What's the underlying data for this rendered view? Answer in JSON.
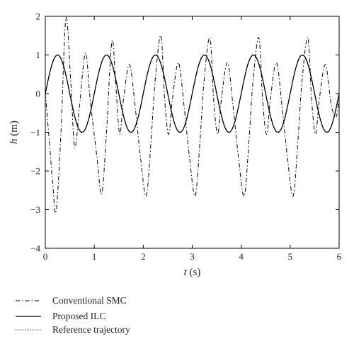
{
  "chart_data": {
    "type": "line",
    "xlabel_var": "t",
    "xlabel_unit": " (s)",
    "ylabel_var": "h",
    "ylabel_unit": " (m)",
    "xlim": [
      0,
      6
    ],
    "ylim": [
      -4,
      2
    ],
    "xticks": [
      "0",
      "1",
      "2",
      "3",
      "4",
      "5",
      "6"
    ],
    "yticks": [
      "2",
      "1",
      "0",
      "−1",
      "−2",
      "−3",
      "−4"
    ],
    "grid": false,
    "legend_position": "bottom-left",
    "series": [
      {
        "name": "Conventional SMC",
        "style": "dashdot",
        "x": [
          0,
          0.08,
          0.15,
          0.22,
          0.32,
          0.42,
          0.52,
          0.6,
          0.7,
          0.82,
          0.92,
          1.05,
          1.15,
          1.24,
          1.36,
          1.44,
          1.52,
          1.6,
          1.72,
          1.84,
          1.94,
          2.06,
          2.16,
          2.24,
          2.36,
          2.44,
          2.52,
          2.6,
          2.72,
          2.84,
          2.94,
          3.06,
          3.16,
          3.24,
          3.36,
          3.44,
          3.52,
          3.6,
          3.72,
          3.84,
          3.94,
          4.06,
          4.16,
          4.24,
          4.36,
          4.44,
          4.52,
          4.6,
          4.72,
          4.84,
          4.94,
          5.06,
          5.16,
          5.24,
          5.36,
          5.44,
          5.52,
          5.6,
          5.72,
          5.84,
          5.94,
          6.0
        ],
        "y": [
          0,
          -1.2,
          -2.3,
          -3.05,
          -1.0,
          1.95,
          0.3,
          -1.4,
          -0.3,
          1.05,
          -0.2,
          -1.6,
          -2.6,
          -1.2,
          1.35,
          0.2,
          -1.05,
          -0.1,
          0.75,
          -0.4,
          -1.6,
          -2.65,
          -1.2,
          0.3,
          1.5,
          -0.2,
          -1.05,
          -0.1,
          0.8,
          -0.4,
          -1.6,
          -2.65,
          -1.2,
          0.3,
          1.45,
          -0.2,
          -1.05,
          -0.1,
          0.8,
          -0.4,
          -1.6,
          -2.65,
          -1.2,
          0.3,
          1.45,
          -0.2,
          -1.05,
          -0.1,
          0.8,
          -0.4,
          -1.6,
          -2.65,
          -1.2,
          0.3,
          1.45,
          -0.2,
          -1.05,
          -0.1,
          0.75,
          -0.3,
          -0.6,
          -0.1
        ]
      },
      {
        "name": "Proposed ILC",
        "style": "solid",
        "amplitude": 1.0,
        "period": 1.0
      },
      {
        "name": "Reference trajectory",
        "style": "dotted",
        "amplitude": 1.0,
        "period": 1.0
      }
    ]
  }
}
